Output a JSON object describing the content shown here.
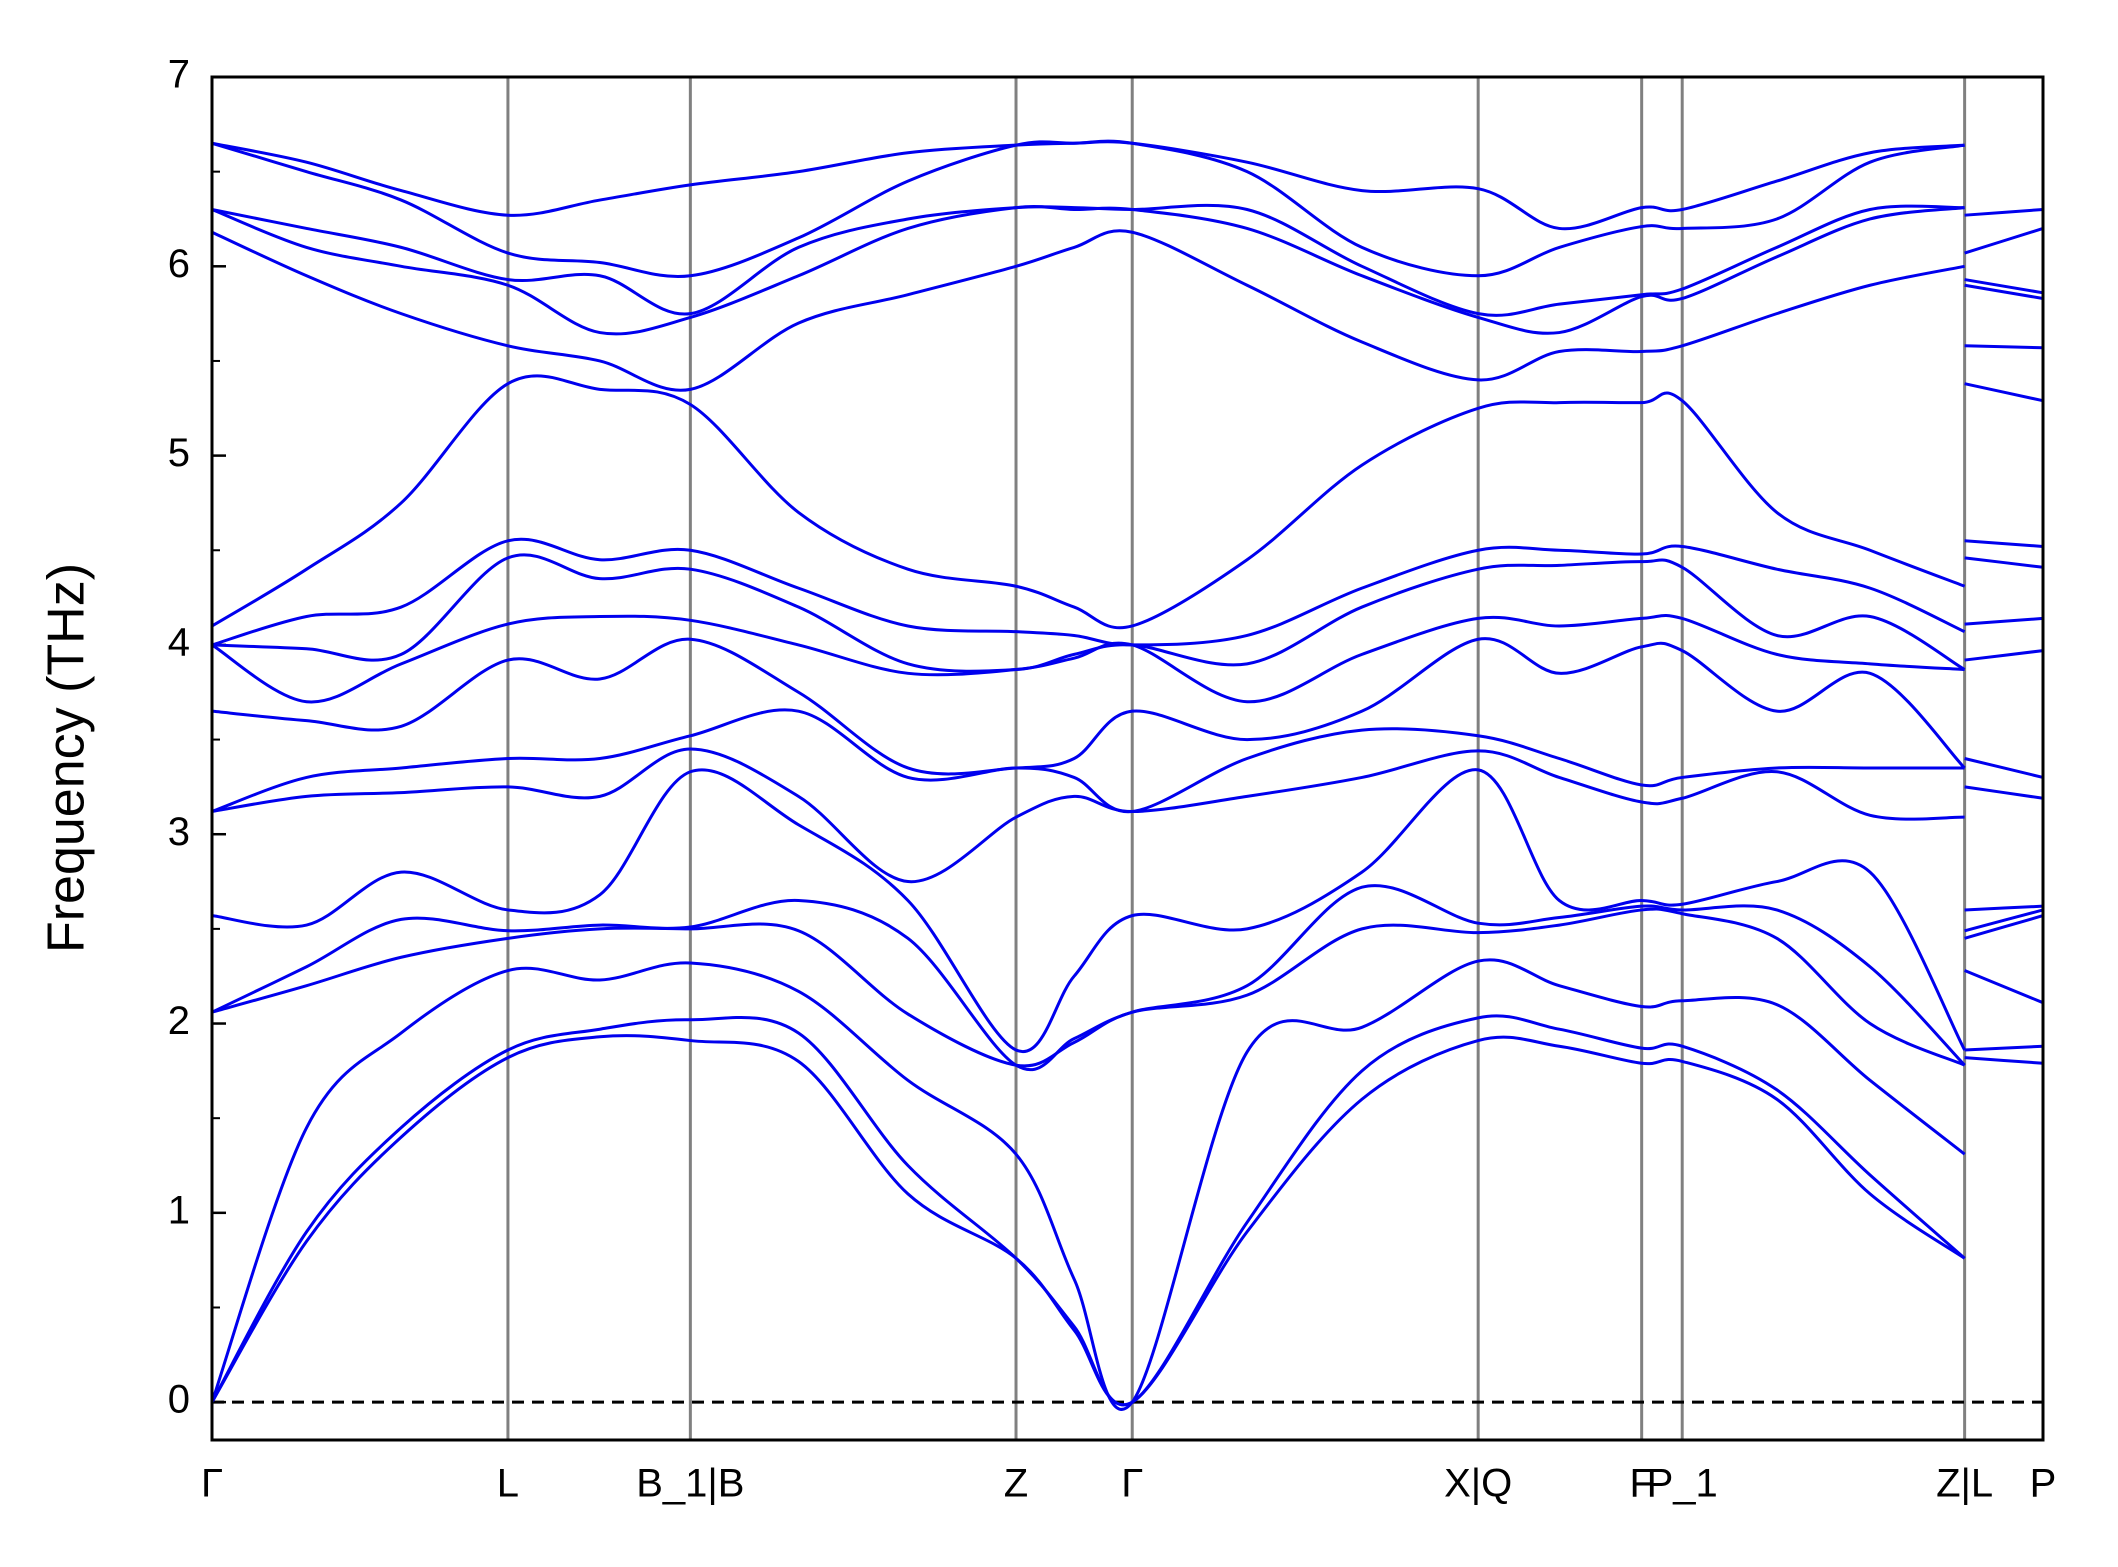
{
  "chart_data": {
    "type": "line",
    "ylabel": "Frequency (THz)",
    "color": "#0000ee",
    "grid_color": "#808080",
    "xgrid": true,
    "hline": {
      "value": 0,
      "color": "#000000",
      "dash": true
    },
    "xlim": [
      0,
      13.55
    ],
    "ylim": [
      -0.2,
      7
    ],
    "xticks": [
      {
        "value": 0,
        "label": "Γ"
      },
      {
        "value": 2.19,
        "label": "L"
      },
      {
        "value": 3.54,
        "label": "B_1|B"
      },
      {
        "value": 5.95,
        "label": "Z"
      },
      {
        "value": 6.81,
        "label": "Γ"
      },
      {
        "value": 9.37,
        "label": "X|Q"
      },
      {
        "value": 10.58,
        "label": "F"
      },
      {
        "value": 10.88,
        "label": "P_1"
      },
      {
        "value": 12.97,
        "label": "Z|L"
      },
      {
        "value": 13.55,
        "label": "P"
      }
    ],
    "yticks": [
      0,
      1,
      2,
      3,
      4,
      5,
      6,
      7
    ],
    "yminorticks": [
      0.5,
      1.5,
      2.5,
      3.5,
      4.5,
      5.5,
      6.5
    ],
    "x": [
      0,
      0.7,
      1.4,
      2.19,
      2.87,
      3.54,
      4.34,
      5.15,
      5.95,
      6.38,
      6.81,
      7.66,
      8.51,
      9.37,
      9.97,
      10.58,
      10.88,
      11.58,
      12.27,
      12.97,
      12.97,
      12.97,
      13.55
    ],
    "series": [
      {
        "values": [
          0,
          0.85,
          1.4,
          1.82,
          1.93,
          1.91,
          1.8,
          1.1,
          0.76,
          0.38,
          0,
          0.9,
          1.6,
          1.91,
          1.88,
          1.79,
          1.8,
          1.6,
          1.1,
          0.76,
          null,
          1.82,
          1.79
        ]
      },
      {
        "values": [
          0,
          0.9,
          1.45,
          1.86,
          1.97,
          2.02,
          1.95,
          1.25,
          0.76,
          0.4,
          0,
          0.95,
          1.75,
          2.03,
          1.97,
          1.87,
          1.88,
          1.65,
          1.2,
          0.76,
          null,
          1.86,
          1.88
        ]
      },
      {
        "values": [
          0,
          1.45,
          1.95,
          2.28,
          2.23,
          2.32,
          2.17,
          1.7,
          1.31,
          0.65,
          0,
          1.85,
          1.98,
          2.33,
          2.2,
          2.09,
          2.12,
          2.1,
          1.7,
          1.31,
          null,
          2.28,
          2.11
        ]
      },
      {
        "values": [
          2.06,
          2.2,
          2.35,
          2.45,
          2.5,
          2.5,
          2.49,
          2.05,
          1.78,
          1.9,
          2.06,
          2.15,
          2.5,
          2.48,
          2.52,
          2.6,
          2.58,
          2.45,
          2.0,
          1.78,
          null,
          2.45,
          2.57
        ]
      },
      {
        "values": [
          2.06,
          2.3,
          2.55,
          2.49,
          2.52,
          2.51,
          2.65,
          2.45,
          1.78,
          1.92,
          2.06,
          2.2,
          2.72,
          2.53,
          2.56,
          2.62,
          2.6,
          2.6,
          2.3,
          1.78,
          null,
          2.49,
          2.6
        ]
      },
      {
        "values": [
          2.57,
          2.52,
          2.8,
          2.6,
          2.68,
          3.33,
          3.05,
          2.65,
          1.86,
          2.25,
          2.57,
          2.5,
          2.8,
          3.34,
          2.65,
          2.65,
          2.63,
          2.75,
          2.8,
          1.86,
          null,
          2.6,
          2.62
        ]
      },
      {
        "values": [
          3.12,
          3.2,
          3.22,
          3.25,
          3.2,
          3.45,
          3.2,
          2.75,
          3.09,
          3.2,
          3.12,
          3.2,
          3.3,
          3.44,
          3.3,
          3.17,
          3.19,
          3.33,
          3.1,
          3.09,
          null,
          3.25,
          3.19
        ]
      },
      {
        "values": [
          3.12,
          3.3,
          3.35,
          3.4,
          3.4,
          3.52,
          3.65,
          3.3,
          3.35,
          3.3,
          3.12,
          3.4,
          3.55,
          3.52,
          3.4,
          3.26,
          3.3,
          3.35,
          3.35,
          3.35,
          null,
          3.4,
          3.3
        ]
      },
      {
        "values": [
          3.65,
          3.6,
          3.57,
          3.92,
          3.82,
          4.03,
          3.75,
          3.35,
          3.35,
          3.4,
          3.65,
          3.5,
          3.65,
          4.03,
          3.85,
          3.99,
          3.97,
          3.65,
          3.85,
          3.35,
          null,
          3.92,
          3.97
        ]
      },
      {
        "values": [
          4.0,
          3.7,
          3.9,
          4.11,
          4.15,
          4.13,
          4.0,
          3.85,
          3.87,
          3.93,
          4.0,
          3.7,
          3.95,
          4.14,
          4.1,
          4.14,
          4.14,
          3.95,
          3.9,
          3.87,
          null,
          4.11,
          4.14
        ]
      },
      {
        "values": [
          4.0,
          3.98,
          3.95,
          4.46,
          4.35,
          4.4,
          4.2,
          3.9,
          3.87,
          3.95,
          4.0,
          3.9,
          4.2,
          4.4,
          4.42,
          4.44,
          4.41,
          4.05,
          4.15,
          3.87,
          null,
          4.46,
          4.41
        ]
      },
      {
        "values": [
          4.0,
          4.15,
          4.2,
          4.55,
          4.45,
          4.5,
          4.3,
          4.1,
          4.07,
          4.05,
          4.0,
          4.05,
          4.3,
          4.5,
          4.5,
          4.48,
          4.52,
          4.4,
          4.3,
          4.07,
          null,
          4.55,
          4.52
        ]
      },
      {
        "values": [
          4.1,
          4.4,
          4.75,
          5.38,
          5.35,
          5.27,
          4.7,
          4.4,
          4.31,
          4.2,
          4.1,
          4.45,
          4.95,
          5.25,
          5.28,
          5.28,
          5.29,
          4.7,
          4.5,
          4.31,
          null,
          5.38,
          5.29
        ]
      },
      {
        "values": [
          6.18,
          5.95,
          5.75,
          5.58,
          5.5,
          5.35,
          5.7,
          5.85,
          6.0,
          6.1,
          6.18,
          5.9,
          5.6,
          5.4,
          5.55,
          5.55,
          5.58,
          5.75,
          5.9,
          6.0,
          null,
          5.58,
          5.57
        ]
      },
      {
        "values": [
          6.3,
          6.1,
          6.0,
          5.9,
          5.65,
          5.73,
          5.95,
          6.2,
          6.31,
          6.3,
          6.3,
          6.2,
          5.95,
          5.73,
          5.65,
          5.84,
          5.83,
          6.05,
          6.25,
          6.31,
          null,
          5.9,
          5.83
        ]
      },
      {
        "values": [
          6.3,
          6.2,
          6.1,
          5.93,
          5.95,
          5.75,
          6.1,
          6.25,
          6.31,
          6.31,
          6.3,
          6.3,
          6.0,
          5.75,
          5.8,
          5.85,
          5.88,
          6.1,
          6.3,
          6.31,
          null,
          5.93,
          5.86
        ]
      },
      {
        "values": [
          6.65,
          6.5,
          6.35,
          6.07,
          6.02,
          5.95,
          6.15,
          6.45,
          6.64,
          6.65,
          6.65,
          6.5,
          6.1,
          5.95,
          6.1,
          6.21,
          6.2,
          6.25,
          6.55,
          6.64,
          null,
          6.07,
          6.2
        ]
      },
      {
        "values": [
          6.65,
          6.55,
          6.4,
          6.27,
          6.35,
          6.43,
          6.5,
          6.6,
          6.64,
          6.65,
          6.65,
          6.55,
          6.4,
          6.41,
          6.2,
          6.31,
          6.3,
          6.45,
          6.6,
          6.64,
          null,
          6.27,
          6.3
        ]
      }
    ]
  }
}
